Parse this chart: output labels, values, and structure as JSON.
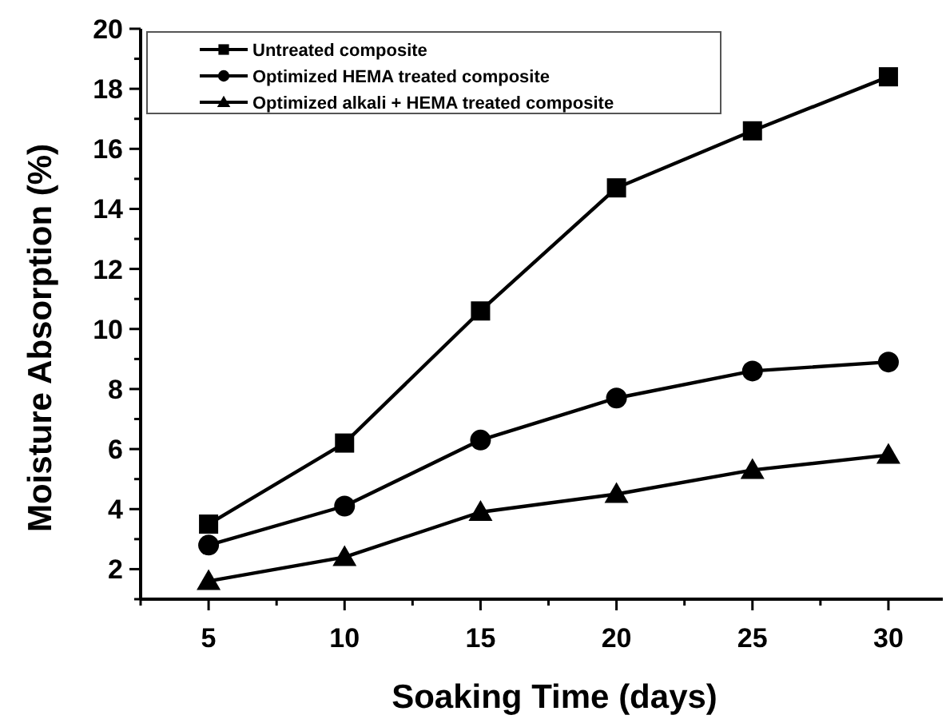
{
  "chart_data": {
    "type": "line",
    "xlabel": "Soaking Time (days)",
    "ylabel": "Moisture Absorption (%)",
    "x": [
      5,
      10,
      15,
      20,
      25,
      30
    ],
    "series": [
      {
        "name": "Untreated composite",
        "color": "#000000",
        "marker": "square",
        "values": [
          3.5,
          6.2,
          10.6,
          14.7,
          16.6,
          18.4
        ]
      },
      {
        "name": "Optimized HEMA treated composite",
        "color": "#000000",
        "marker": "circle",
        "values": [
          2.8,
          4.1,
          6.3,
          7.7,
          8.6,
          8.9
        ]
      },
      {
        "name": "Optimized alkali + HEMA treated composite",
        "color": "#000000",
        "marker": "triangle",
        "values": [
          1.6,
          2.4,
          3.9,
          4.5,
          5.3,
          5.8
        ]
      }
    ],
    "xlim": [
      2.5,
      32
    ],
    "ylim": [
      1,
      20
    ],
    "xticks": [
      {
        "value": 2.5,
        "label": null
      },
      5,
      {
        "value": 7.5,
        "label": null
      },
      10,
      {
        "value": 12.5,
        "label": null
      },
      15,
      {
        "value": 17.5,
        "label": null
      },
      20,
      {
        "value": 22.5,
        "label": null
      },
      25,
      {
        "value": 27.5,
        "label": null
      },
      30
    ],
    "yticks": [
      {
        "value": 1,
        "label": null
      },
      2,
      {
        "value": 3,
        "label": null
      },
      4,
      {
        "value": 5,
        "label": null
      },
      6,
      {
        "value": 7,
        "label": null
      },
      8,
      {
        "value": 9,
        "label": null
      },
      10,
      {
        "value": 11,
        "label": null
      },
      12,
      {
        "value": 13,
        "label": null
      },
      14,
      {
        "value": 15,
        "label": null
      },
      16,
      {
        "value": 17,
        "label": null
      },
      18,
      {
        "value": 19,
        "label": null
      },
      20
    ],
    "grid": false,
    "legend": "top left",
    "line_style": "solid"
  }
}
